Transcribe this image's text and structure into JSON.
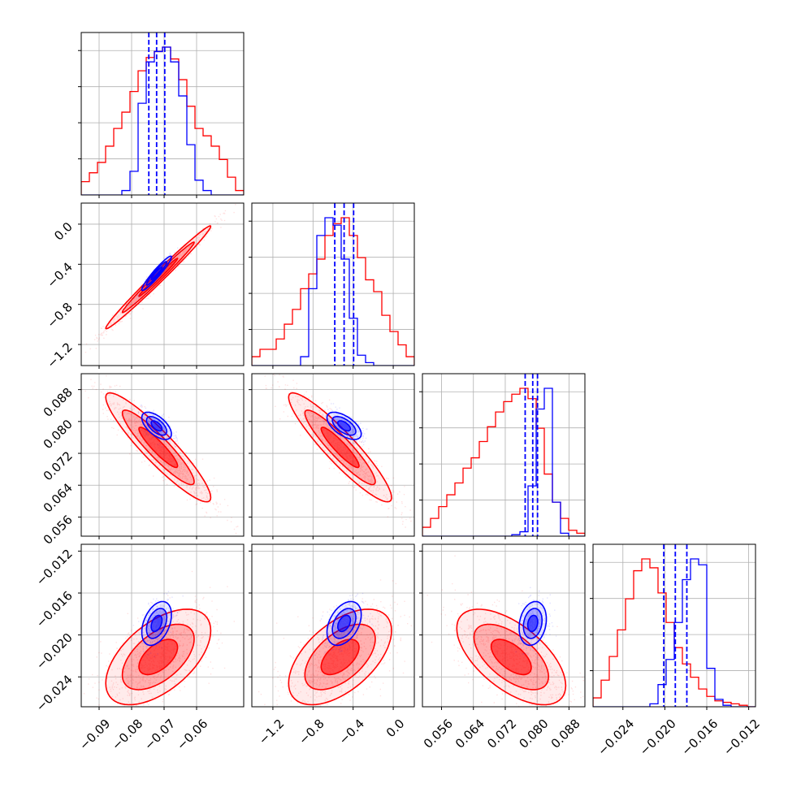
{
  "chart_data": {
    "type": "corner",
    "grid": true,
    "parameters": [
      {
        "range": [
          -0.0955,
          -0.0455
        ],
        "ticks": [
          -0.09,
          -0.08,
          -0.07,
          -0.06
        ],
        "tick_labels": [
          "−0.09",
          "−0.08",
          "−0.07",
          "−0.06"
        ]
      },
      {
        "range": [
          -1.41,
          0.21
        ],
        "ticks": [
          -1.2,
          -0.8,
          -0.4,
          0.0
        ],
        "tick_labels": [
          "−1.2",
          "−0.8",
          "−0.4",
          "0.0"
        ]
      },
      {
        "range": [
          0.0512,
          0.092
        ],
        "ticks": [
          0.056,
          0.064,
          0.072,
          0.08,
          0.088
        ],
        "tick_labels": [
          "0.056",
          "0.064",
          "0.072",
          "0.080",
          "0.088"
        ]
      },
      {
        "range": [
          -0.02685,
          -0.01135
        ],
        "ticks": [
          -0.024,
          -0.02,
          -0.016,
          -0.012
        ],
        "tick_labels": [
          "−0.024",
          "−0.020",
          "−0.016",
          "−0.012"
        ]
      }
    ],
    "series": [
      {
        "color": "#ff0000",
        "mean": [
          -0.0718,
          -0.53,
          0.0735,
          -0.0221
        ],
        "std": [
          0.0085,
          0.27,
          0.0072,
          0.0024
        ],
        "corr": [
          [
            1.0,
            0.99,
            -0.92,
            0.55
          ],
          [
            0.99,
            1.0,
            -0.92,
            0.55
          ],
          [
            -0.92,
            -0.92,
            1.0,
            -0.6
          ],
          [
            0.55,
            0.55,
            -0.6,
            1.0
          ]
        ],
        "histograms": [
          [
            0.09,
            0.15,
            0.22,
            0.33,
            0.45,
            0.56,
            0.7,
            0.84,
            0.93,
            0.97,
            1.0,
            0.92,
            0.78,
            0.6,
            0.45,
            0.4,
            0.33,
            0.24,
            0.12,
            0.03
          ],
          [
            0.06,
            0.11,
            0.11,
            0.18,
            0.28,
            0.38,
            0.52,
            0.62,
            0.72,
            0.88,
            0.96,
            1.0,
            0.88,
            0.73,
            0.58,
            0.5,
            0.34,
            0.23,
            0.14,
            0.06
          ],
          [
            0.06,
            0.12,
            0.2,
            0.28,
            0.36,
            0.46,
            0.53,
            0.64,
            0.74,
            0.84,
            0.91,
            0.96,
            1.0,
            0.93,
            0.73,
            0.42,
            0.23,
            0.12,
            0.04,
            0.02
          ],
          [
            0.06,
            0.18,
            0.34,
            0.52,
            0.73,
            0.92,
            1.0,
            0.94,
            0.77,
            0.57,
            0.4,
            0.29,
            0.2,
            0.12,
            0.07,
            0.04,
            0.03,
            0.02,
            0.01,
            0.0
          ]
        ]
      },
      {
        "color": "#0000ff",
        "mean": [
          -0.0723,
          -0.49,
          0.0789,
          -0.0189
        ],
        "std": [
          0.0024,
          0.09,
          0.0018,
          0.0011
        ],
        "corr": [
          [
            1.0,
            0.95,
            -0.6,
            0.4
          ],
          [
            0.95,
            1.0,
            -0.6,
            0.4
          ],
          [
            -0.6,
            -0.6,
            1.0,
            0.2
          ],
          [
            0.4,
            0.4,
            0.2,
            1.0
          ]
        ],
        "quantile_lines": [
          [
            -0.0747,
            -0.0723,
            -0.0698
          ],
          [
            -0.583,
            -0.49,
            -0.395
          ],
          [
            0.077,
            0.0789,
            0.0801
          ],
          [
            -0.0201,
            -0.019,
            -0.0179
          ]
        ],
        "histograms": [
          [
            0.0,
            0.0,
            0.0,
            0.0,
            0.0,
            0.03,
            0.16,
            0.62,
            0.9,
            0.97,
            1.0,
            0.9,
            0.67,
            0.34,
            0.1,
            0.03,
            0.0,
            0.0,
            0.0,
            0.0
          ],
          [
            0.0,
            0.0,
            0.0,
            0.0,
            0.0,
            0.0,
            0.06,
            0.52,
            0.88,
            1.0,
            0.95,
            0.72,
            0.32,
            0.07,
            0.02,
            0.0,
            0.0,
            0.0,
            0.0,
            0.0
          ],
          [
            0.0,
            0.0,
            0.0,
            0.0,
            0.0,
            0.0,
            0.0,
            0.0,
            0.0,
            0.0,
            0.0,
            0.01,
            0.03,
            0.34,
            0.86,
            1.0,
            0.23,
            0.02,
            0.0,
            0.0
          ],
          [
            0.0,
            0.0,
            0.0,
            0.0,
            0.0,
            0.0,
            0.0,
            0.02,
            0.15,
            0.32,
            0.57,
            0.86,
            1.0,
            0.96,
            0.26,
            0.05,
            0.01,
            0.0,
            0.0,
            0.0
          ]
        ]
      }
    ]
  }
}
